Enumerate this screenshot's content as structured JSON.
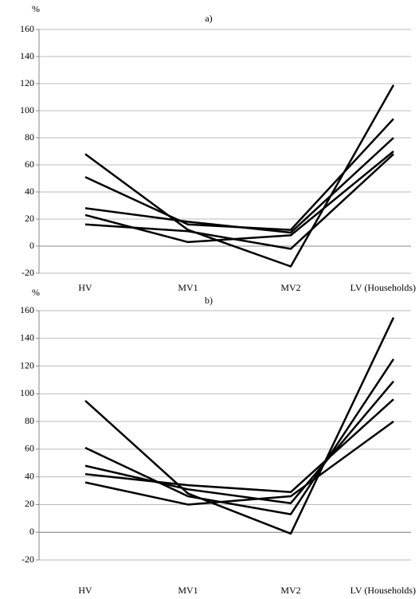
{
  "chart_data": [
    {
      "type": "line",
      "title": "a)",
      "y_label": "%",
      "categories": [
        "HV",
        "MV1",
        "MV2",
        "LV (Households)"
      ],
      "ylim": [
        -20,
        160
      ],
      "yticks": [
        -20,
        0,
        20,
        40,
        60,
        80,
        100,
        120,
        140,
        160
      ],
      "grid": true,
      "series": [
        {
          "color": "#000000",
          "values": [
            68,
            12,
            -15,
            119
          ]
        },
        {
          "color": "#000000",
          "values": [
            51,
            16,
            12,
            94
          ]
        },
        {
          "color": "#000000",
          "values": [
            28,
            18,
            10,
            80
          ]
        },
        {
          "color": "#000000",
          "values": [
            23,
            3,
            8,
            70
          ]
        },
        {
          "color": "#000000",
          "values": [
            16,
            11,
            -2,
            68
          ]
        }
      ]
    },
    {
      "type": "line",
      "title": "b)",
      "y_label": "%",
      "categories": [
        "HV",
        "MV1",
        "MV2",
        "LV (Households)"
      ],
      "ylim": [
        -20,
        160
      ],
      "yticks": [
        -20,
        0,
        20,
        40,
        60,
        80,
        100,
        120,
        140,
        160
      ],
      "grid": true,
      "series": [
        {
          "color": "#000000",
          "values": [
            95,
            28,
            -1,
            155
          ]
        },
        {
          "color": "#000000",
          "values": [
            61,
            26,
            13,
            125
          ]
        },
        {
          "color": "#000000",
          "values": [
            48,
            31,
            21,
            109
          ]
        },
        {
          "color": "#000000",
          "values": [
            42,
            34,
            29,
            96
          ]
        },
        {
          "color": "#000000",
          "values": [
            36,
            20,
            26,
            80
          ]
        }
      ]
    }
  ]
}
